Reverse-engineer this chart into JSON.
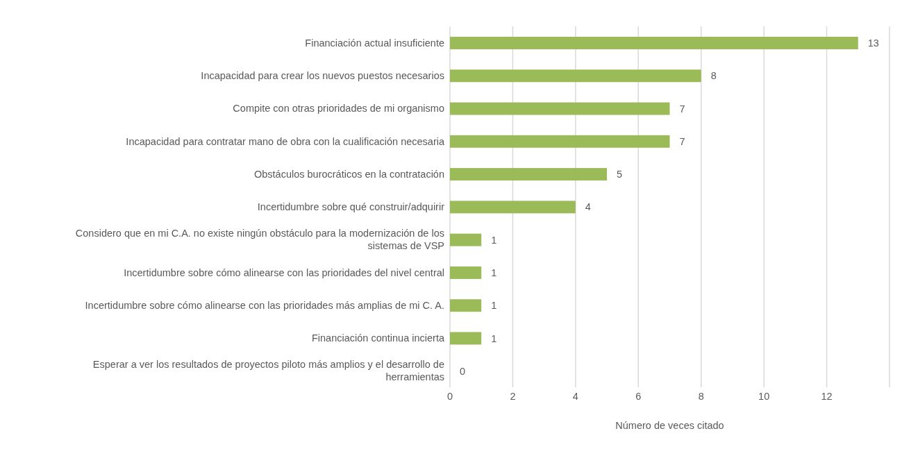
{
  "chart_data": {
    "type": "bar",
    "orientation": "horizontal",
    "xlabel": "Número de veces citado",
    "categories": [
      "Financiación actual insuficiente",
      "Incapacidad para crear los nuevos puestos necesarios",
      "Compite con otras prioridades de mi organismo",
      "Incapacidad para contratar mano de obra con la cualificación necesaria",
      "Obstáculos burocráticos en la contratación",
      "Incertidumbre sobre qué construir/adquirir",
      "Considero que en mi C.A. no existe ningún obstáculo para la modernización de los sistemas de VSP",
      "Incertidumbre sobre cómo alinearse con las prioridades del nivel central",
      "Incertidumbre sobre cómo alinearse con las prioridades más amplias de mi C. A.",
      "Financiación continua incierta",
      "Esperar a ver los resultados de proyectos piloto más amplios y el desarrollo de herramientas"
    ],
    "values": [
      13,
      8,
      7,
      7,
      5,
      4,
      1,
      1,
      1,
      1,
      0
    ],
    "color": "#9bbb59",
    "xlim": [
      0,
      14
    ],
    "xticks": [
      0,
      2,
      4,
      6,
      8,
      10,
      12
    ],
    "grid": "x",
    "data_labels": true
  }
}
